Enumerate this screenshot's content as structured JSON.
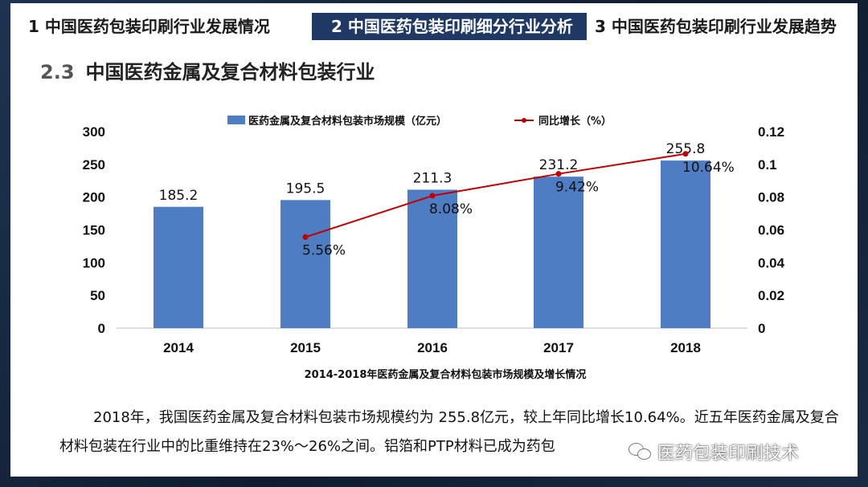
{
  "tabs": [
    {
      "label": "1  中国医药包装印刷行业发展情况",
      "active": false
    },
    {
      "label": "2  中国医药包装印刷细分行业分析",
      "active": true
    },
    {
      "label": "3  中国医药包装印刷行业发展趋势",
      "active": false
    }
  ],
  "section": {
    "number": "2.3",
    "title": "中国医药金属及复合材料包装行业"
  },
  "colors": {
    "bar": "#4f7dc3",
    "line": "#c00000",
    "tab_active": "#1f3864"
  },
  "chart_data": {
    "type": "bar",
    "categories": [
      "2014",
      "2015",
      "2016",
      "2017",
      "2018"
    ],
    "series": [
      {
        "name": "医药金属及复合材料包装市场规模（亿元）",
        "type": "bar",
        "axis": "left",
        "values": [
          185.2,
          195.5,
          211.3,
          231.2,
          255.8
        ],
        "labels": [
          "185.2",
          "195.5",
          "211.3",
          "231.2",
          "255.8"
        ]
      },
      {
        "name": "同比增长（%）",
        "type": "line",
        "axis": "right",
        "values": [
          null,
          0.0556,
          0.0808,
          0.0942,
          0.1064
        ],
        "labels": [
          "",
          "5.56%",
          "8.08%",
          "9.42%",
          "10.64%"
        ]
      }
    ],
    "y_left": {
      "range": [
        0,
        300
      ],
      "ticks": [
        "0",
        "50",
        "100",
        "150",
        "200",
        "250",
        "300"
      ]
    },
    "y_right": {
      "range": [
        0,
        0.12
      ],
      "ticks": [
        "0",
        "0.02",
        "0.04",
        "0.06",
        "0.08",
        "0.1",
        "0.12"
      ]
    },
    "legend_position": "top",
    "grid": false,
    "title": "2014-2018年医药金属及复合材料包装市场规模及增长情况"
  },
  "paragraph": "2018年，我国医药金属及复合材料包装市场规模约为 255.8亿元，较上年同比增长10.64%。近五年医药金属及复合材料包装在行业中的比重维持在23%～26%之间。铝箔和PTP材料已成为药包",
  "watermark": "医药包装印刷技术"
}
